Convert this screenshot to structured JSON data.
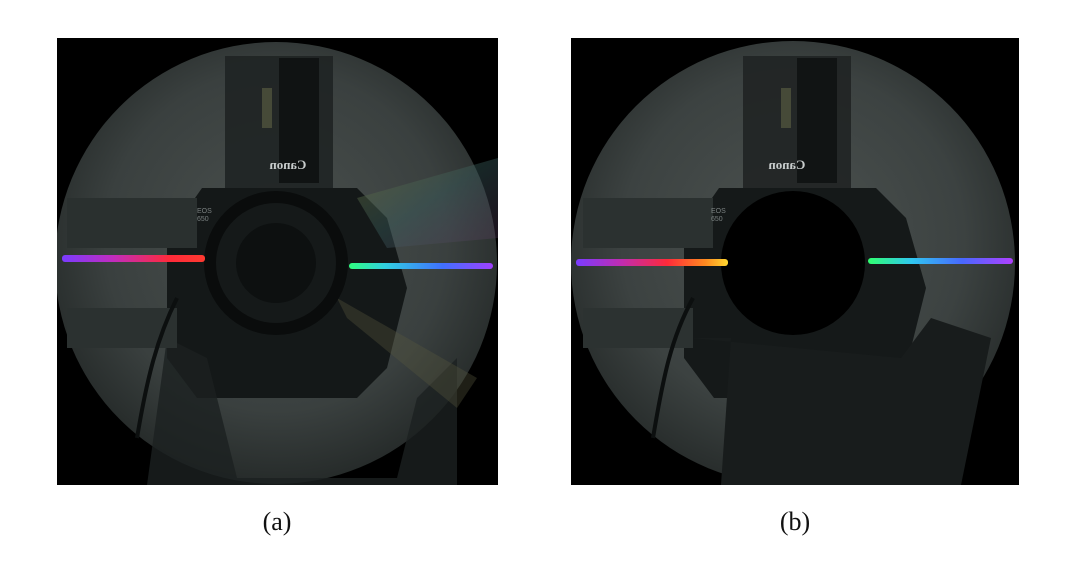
{
  "figure": {
    "panels": [
      {
        "id": "a",
        "caption": "(a)",
        "brand_text": "Canon"
      },
      {
        "id": "b",
        "caption": "(b)",
        "brand_text": "Canon"
      }
    ],
    "colors": {
      "background": "#000000",
      "disc_surface": "#3e4442",
      "spectrum": [
        "#6a3cff",
        "#c02cb0",
        "#ff2a3a",
        "#ff6a20",
        "#ffd020",
        "#30ff80",
        "#30d0ff",
        "#4060ff",
        "#8a40ff"
      ]
    }
  }
}
